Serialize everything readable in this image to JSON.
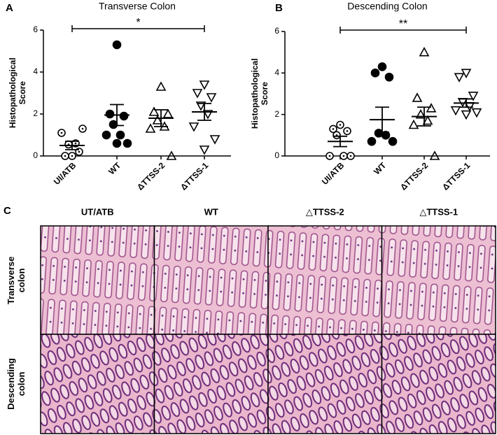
{
  "chart_data": [
    {
      "type": "scatter",
      "panel_label": "A",
      "title": "Transverse Colon",
      "ylabel": "Histopathological Score",
      "categories": [
        "UI/ATB",
        "WT",
        "ΔTTSS-2",
        "ΔTTSS-1"
      ],
      "markers": [
        "circle-dot",
        "circle-filled",
        "triangle-up",
        "triangle-down"
      ],
      "color": "#000000",
      "points": [
        [
          0,
          0,
          0.2,
          0.55,
          0.6,
          1.1,
          1.3
        ],
        [
          5.3,
          2.0,
          1.9,
          1.5,
          1.0,
          1.0,
          0.6,
          0.6
        ],
        [
          3.3,
          2.1,
          2.0,
          1.7,
          1.4,
          1.3,
          0
        ],
        [
          3.4,
          3.0,
          2.8,
          2.4,
          2.0,
          1.4,
          0.8,
          0.3
        ]
      ],
      "mean": [
        0.5,
        1.95,
        1.8,
        2.1
      ],
      "sem": [
        0.2,
        0.5,
        0.4,
        0.4
      ],
      "ylim": [
        0,
        6
      ],
      "yticks": [
        0,
        2,
        4,
        6
      ],
      "significance": {
        "label": "*",
        "categories": [
          "UI/ATB",
          "ΔTTSS-1"
        ]
      }
    },
    {
      "type": "scatter",
      "panel_label": "B",
      "title": "Descending Colon",
      "ylabel": "Histopathological Score",
      "categories": [
        "UI/ATB",
        "WT",
        "ΔTTSS-2",
        "ΔTTSS-1"
      ],
      "markers": [
        "circle-dot",
        "circle-filled",
        "triangle-up",
        "triangle-down"
      ],
      "color": "#000000",
      "points": [
        [
          1.5,
          1.3,
          1.2,
          1.0,
          0,
          0,
          0
        ],
        [
          4.3,
          4.0,
          3.8,
          1.1,
          1.0,
          0.7,
          0.7
        ],
        [
          5.0,
          2.8,
          2.3,
          2.0,
          1.7,
          1.5,
          0
        ],
        [
          4.0,
          3.8,
          2.9,
          2.6,
          2.4,
          2.2,
          2.1,
          2.0
        ]
      ],
      "mean": [
        0.7,
        1.75,
        1.9,
        2.55
      ],
      "sem": [
        0.25,
        0.6,
        0.45,
        0.2
      ],
      "ylim": [
        0,
        6
      ],
      "yticks": [
        0,
        2,
        4,
        6
      ],
      "significance": {
        "label": "**",
        "categories": [
          "UI/ATB",
          "ΔTTSS-1"
        ]
      }
    }
  ],
  "histology": {
    "panel_label": "C",
    "columns": [
      "UT/ATB",
      "WT",
      "△TTSS-2",
      "△TTSS-1"
    ],
    "rows": [
      "Transverse colon",
      "Descending colon"
    ]
  }
}
